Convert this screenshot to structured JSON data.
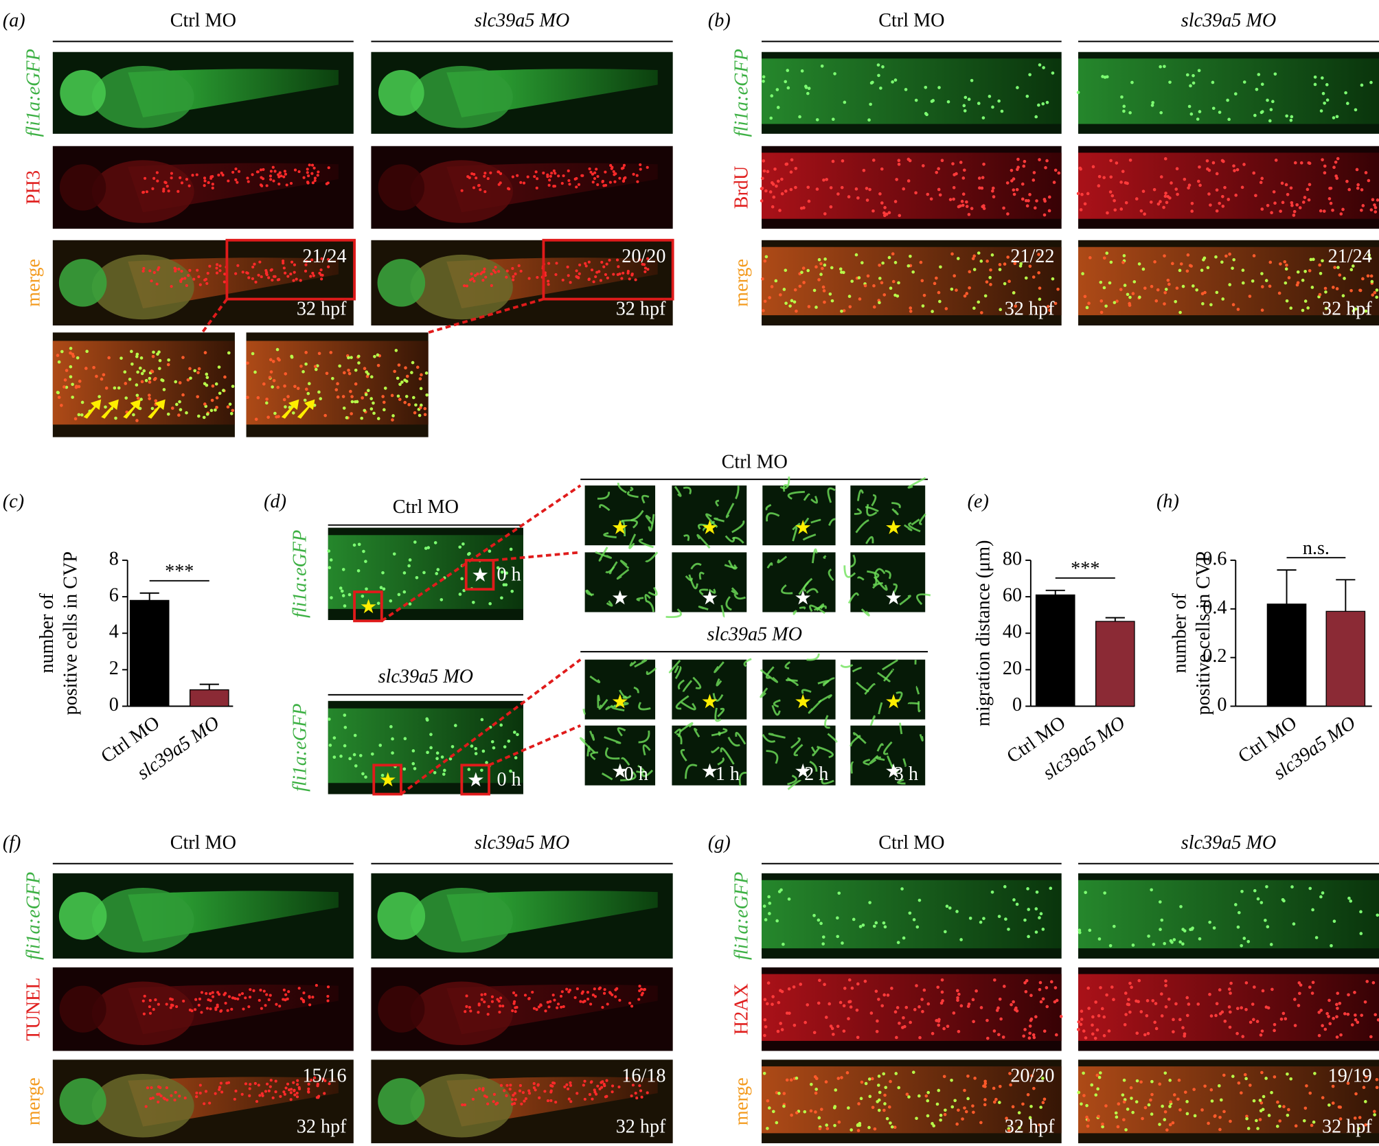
{
  "figure": {
    "stage": "32 hpf",
    "panels": [
      {
        "label": "(a)",
        "columns": [
          "Ctrl MO",
          "slc39a5 MO"
        ],
        "rows": [
          "fli1a:eGFP",
          "PH3",
          "merge"
        ],
        "counts": [
          "21/24",
          "20/20"
        ]
      },
      {
        "label": "(b)",
        "columns": [
          "Ctrl MO",
          "slc39a5 MO"
        ],
        "rows": [
          "fli1a:eGFP",
          "BrdU",
          "merge"
        ],
        "counts": [
          "21/22",
          "21/24"
        ]
      },
      {
        "label": "(f)",
        "columns": [
          "Ctrl MO",
          "slc39a5 MO"
        ],
        "rows": [
          "fli1a:eGFP",
          "TUNEL",
          "merge"
        ],
        "counts": [
          "15/16",
          "16/18"
        ]
      },
      {
        "label": "(g)",
        "columns": [
          "Ctrl MO",
          "slc39a5 MO"
        ],
        "rows": [
          "fli1a:eGFP",
          "H2AX",
          "merge"
        ],
        "counts": [
          "20/20",
          "19/19"
        ]
      }
    ],
    "panel_d": {
      "label": "(d)",
      "groups": [
        "Ctrl MO",
        "slc39a5 MO"
      ],
      "row_label": "fli1a:eGFP",
      "times": [
        "0 h",
        "1 h",
        "2 h",
        "3 h"
      ]
    }
  },
  "chart_data": [
    {
      "type": "bar",
      "label": "(c)",
      "ylabel": [
        "number of",
        "positive cells in CVP"
      ],
      "categories": [
        "Ctrl MO",
        "slc39a5 MO"
      ],
      "values": [
        5.8,
        0.9
      ],
      "errors": [
        0.4,
        0.3
      ],
      "colors": [
        "#000000",
        "#8b2a35"
      ],
      "ylim": [
        0,
        8
      ],
      "yticks": [
        0,
        2,
        4,
        6,
        8
      ],
      "significance": "***"
    },
    {
      "type": "bar",
      "label": "(e)",
      "ylabel": [
        "migration distance (μm)"
      ],
      "categories": [
        "Ctrl MO",
        "slc39a5 MO"
      ],
      "values": [
        61,
        46.5
      ],
      "errors": [
        2.5,
        2
      ],
      "colors": [
        "#000000",
        "#8b2a35"
      ],
      "ylim": [
        0,
        80
      ],
      "yticks": [
        0,
        20,
        40,
        60,
        80
      ],
      "significance": "***"
    },
    {
      "type": "bar",
      "label": "(h)",
      "ylabel": [
        "number of",
        "positive cells in CVP"
      ],
      "categories": [
        "Ctrl MO",
        "slc39a5 MO"
      ],
      "values": [
        0.42,
        0.39
      ],
      "errors": [
        0.14,
        0.13
      ],
      "colors": [
        "#000000",
        "#8b2a35"
      ],
      "ylim": [
        0,
        0.6
      ],
      "yticks": [
        0,
        0.2,
        0.4,
        0.6
      ],
      "significance": "n.s."
    }
  ]
}
